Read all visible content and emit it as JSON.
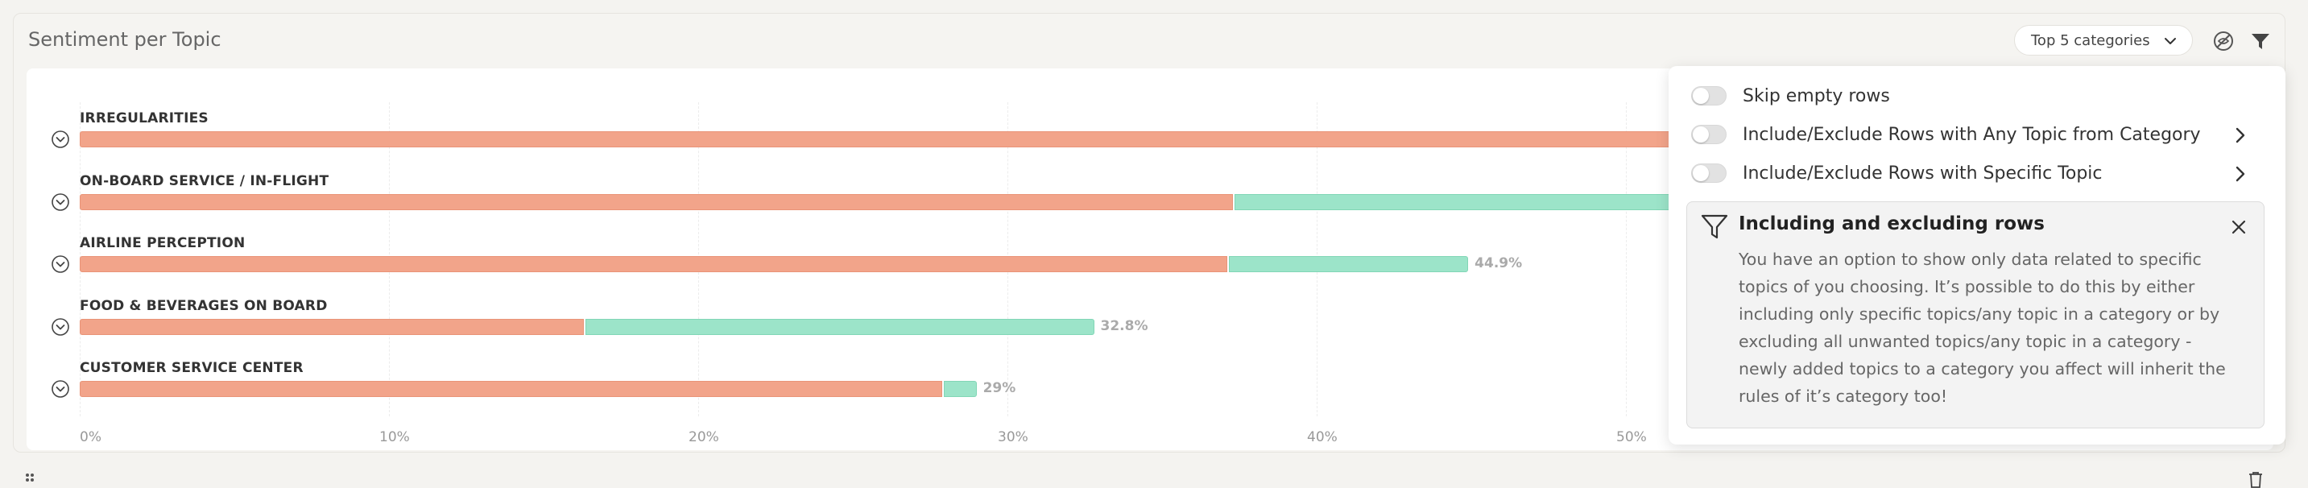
{
  "widget": {
    "title": "Sentiment per Topic",
    "dropdown_label": "Top 5 categories"
  },
  "chart_data": {
    "type": "bar",
    "stacked": true,
    "orientation": "horizontal",
    "categories": [
      "IRREGULARITIES",
      "ON-BOARD SERVICE / IN-FLIGHT",
      "AIRLINE PERCEPTION",
      "FOOD & BEVERAGES ON BOARD",
      "CUSTOMER SERVICE CENTER"
    ],
    "series": [
      {
        "color": "#f2a48a",
        "values": [
          55.0,
          37.3,
          37.1,
          16.3,
          27.9
        ]
      },
      {
        "color": "#9ce4c9",
        "values": [
          null,
          18.0,
          7.8,
          16.5,
          1.1
        ]
      }
    ],
    "total_labels": [
      "",
      "",
      "44.9%",
      "32.8%",
      "29%"
    ],
    "x_ticks": [
      "0%",
      "10%",
      "20%",
      "30%",
      "40%",
      "50%"
    ],
    "xlim": [
      0,
      55
    ]
  },
  "popover": {
    "options": [
      {
        "label": "Skip empty rows",
        "has_arrow": false
      },
      {
        "label": "Include/Exclude Rows with Any Topic from Category",
        "has_arrow": true
      },
      {
        "label": "Include/Exclude Rows with Specific Topic",
        "has_arrow": true
      }
    ],
    "info": {
      "title": "Including and excluding rows",
      "body": "You have an option to show only data related to specific topics of you choosing. It’s possible to do this by either including only specific topics/any topic in a category or by excluding all unwanted topics/any topic in a category - newly added topics to a category you affect will inherit the rules of it’s category too!"
    }
  }
}
